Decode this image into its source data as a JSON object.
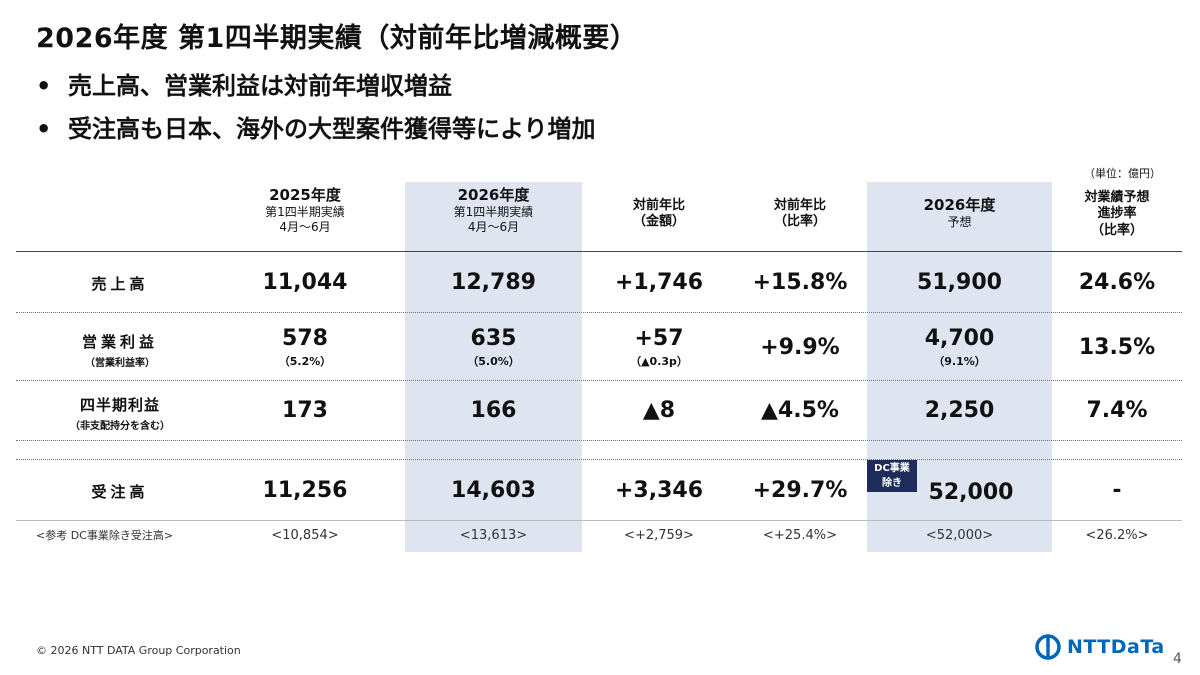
{
  "title": "2026年度 第1四半期実績（対前年比増減概要）",
  "bullets": [
    "売上高、営業利益は対前年増収増益",
    "受注高も日本、海外の大型案件獲得等により増加"
  ],
  "bullet_symbol": "•",
  "unit_note": "（単位：億円）",
  "headers": {
    "col1": {
      "main": "2025年度",
      "sub1": "第1四半期実績",
      "sub2": "4月～6月"
    },
    "col2": {
      "main": "2026年度",
      "sub1": "第1四半期実績",
      "sub2": "4月～6月"
    },
    "col3": {
      "line1": "対前年比",
      "line2": "（金額）"
    },
    "col4": {
      "line1": "対前年比",
      "line2": "（比率）"
    },
    "col5": {
      "main": "2026年度",
      "sub1": "予想"
    },
    "col6": {
      "line1": "対業績予想",
      "line2": "進捗率",
      "line3": "（比率）"
    }
  },
  "rows": {
    "sales": {
      "label": "売上高",
      "v1": "11,044",
      "v2": "12,789",
      "v3": "+1,746",
      "v4": "+15.8%",
      "v5": "51,900",
      "v6": "24.6%"
    },
    "op_income": {
      "label": "営業利益",
      "sublabel": "（営業利益率）",
      "v1": "578",
      "s1": "（5.2%）",
      "v2": "635",
      "s2": "（5.0%）",
      "v3": "+57",
      "s3": "（▲0.3p）",
      "v4": "+9.9%",
      "v5": "4,700",
      "s5": "（9.1%）",
      "v6": "13.5%"
    },
    "net_income": {
      "label": "四半期利益",
      "sublabel": "（非支配持分を含む）",
      "v1": "173",
      "v2": "166",
      "v3": "▲8",
      "v4": "▲4.5%",
      "v5": "2,250",
      "v6": "7.4%"
    },
    "orders": {
      "label": "受注高",
      "v1": "11,256",
      "v2": "14,603",
      "v3": "+3,346",
      "v4": "+29.7%",
      "badge_line1": "DC事業",
      "badge_line2": "除き",
      "v5": "52,000",
      "v6": "-"
    },
    "orders_ref": {
      "label": "<参考 DC事業除き受注高>",
      "v1": "<10,854>",
      "v2": "<13,613>",
      "v3": "<+2,759>",
      "v4": "<+25.4%>",
      "v5": "<52,000>",
      "v6": "<26.2%>"
    }
  },
  "footer": {
    "copyright": "© 2026 NTT DATA Group Corporation",
    "logo_text": "NTTDaTa",
    "page": "4"
  },
  "colors": {
    "shade": "#dfe5f0",
    "badge": "#1d2c5a",
    "logo": "#0067b8"
  }
}
